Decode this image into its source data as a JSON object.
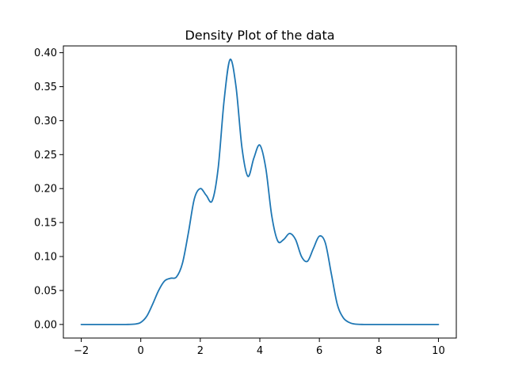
{
  "chart_data": {
    "type": "line",
    "title": "Density Plot of the data",
    "xlabel": "",
    "ylabel": "",
    "xlim": [
      -2.6,
      10.6
    ],
    "ylim": [
      -0.02,
      0.41
    ],
    "x_ticks": [
      -2,
      0,
      2,
      4,
      6,
      8,
      10
    ],
    "x_tick_labels": [
      "−2",
      "0",
      "2",
      "4",
      "6",
      "8",
      "10"
    ],
    "y_ticks": [
      0.0,
      0.05,
      0.1,
      0.15,
      0.2,
      0.25,
      0.3,
      0.35,
      0.4
    ],
    "y_tick_labels": [
      "0.00",
      "0.05",
      "0.10",
      "0.15",
      "0.20",
      "0.25",
      "0.30",
      "0.35",
      "0.40"
    ],
    "grid": false,
    "line_color": "#1f77b4",
    "series": [
      {
        "x": [
          -2.0,
          -1.0,
          -0.5,
          -0.2,
          0.0,
          0.2,
          0.4,
          0.6,
          0.8,
          1.0,
          1.2,
          1.4,
          1.6,
          1.8,
          2.0,
          2.2,
          2.4,
          2.6,
          2.8,
          3.0,
          3.2,
          3.4,
          3.6,
          3.8,
          4.0,
          4.2,
          4.4,
          4.6,
          4.8,
          5.0,
          5.2,
          5.4,
          5.6,
          5.8,
          6.0,
          6.2,
          6.4,
          6.6,
          6.8,
          7.0,
          7.2,
          7.5,
          8.0,
          9.0,
          10.0
        ],
        "y": [
          0.0,
          0.0,
          0.0,
          0.0005,
          0.003,
          0.012,
          0.03,
          0.05,
          0.064,
          0.068,
          0.07,
          0.09,
          0.135,
          0.185,
          0.2,
          0.19,
          0.182,
          0.23,
          0.33,
          0.39,
          0.35,
          0.26,
          0.218,
          0.245,
          0.264,
          0.23,
          0.16,
          0.123,
          0.125,
          0.134,
          0.125,
          0.1,
          0.093,
          0.112,
          0.13,
          0.12,
          0.075,
          0.03,
          0.01,
          0.003,
          0.0005,
          0.0,
          0.0,
          0.0,
          0.0
        ]
      }
    ]
  }
}
